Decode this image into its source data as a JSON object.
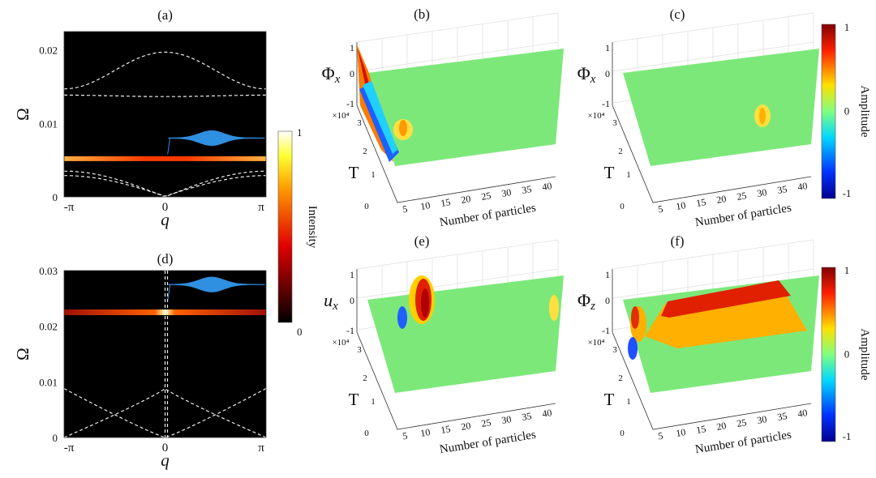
{
  "chart_data": [
    {
      "panel": "(a)",
      "type": "heatmap",
      "xlabel": "q",
      "ylabel": "Ω",
      "xticks": [
        "-π",
        "0",
        "π"
      ],
      "yticks": [
        "0",
        "0.01",
        "0.02"
      ],
      "ylim": [
        0,
        0.0225
      ],
      "xlim": [
        -3.1416,
        3.1416
      ],
      "band_omega": 0.0052,
      "packet_omega": 0.008,
      "colorbar": {
        "label": "Intensity",
        "ticks": [
          "1",
          "0"
        ]
      }
    },
    {
      "panel": "(d)",
      "type": "heatmap",
      "xlabel": "q",
      "ylabel": "Ω",
      "xticks": [
        "-π",
        "0",
        "π"
      ],
      "yticks": [
        "0",
        "0.01",
        "0.02",
        "0.03"
      ],
      "ylim": [
        0,
        0.03
      ],
      "xlim": [
        -3.1416,
        3.1416
      ],
      "band_omega": 0.0225,
      "packet_omega": 0.0275
    },
    {
      "panel": "(b)",
      "type": "surface",
      "zlabel": "Φx",
      "tlabel": "T",
      "xlabel": "Number of particles",
      "zticks": [
        "1",
        "0",
        "-1"
      ],
      "tticks": [
        "0",
        "1",
        "2",
        "3"
      ],
      "tscale": "×10⁴",
      "xticks": [
        "5",
        "10",
        "15",
        "20",
        "25",
        "30",
        "35",
        "40"
      ]
    },
    {
      "panel": "(c)",
      "type": "surface",
      "zlabel": "Φx",
      "tlabel": "T",
      "xlabel": "Number of particles",
      "zticks": [
        "1",
        "0",
        "-1"
      ],
      "tticks": [
        "0",
        "1",
        "2",
        "3"
      ],
      "tscale": "×10⁴",
      "xticks": [
        "5",
        "10",
        "15",
        "20",
        "25",
        "30",
        "35",
        "40"
      ]
    },
    {
      "panel": "(e)",
      "type": "surface",
      "zlabel": "ux",
      "tlabel": "T",
      "xlabel": "Number of particles",
      "zticks": [
        "1",
        "0",
        "-1"
      ],
      "tticks": [
        "0",
        "1",
        "2",
        "3"
      ],
      "tscale": "×10⁴",
      "xticks": [
        "5",
        "10",
        "15",
        "20",
        "25",
        "30",
        "35",
        "40"
      ]
    },
    {
      "panel": "(f)",
      "type": "surface",
      "zlabel": "Φz",
      "tlabel": "T",
      "xlabel": "Number of particles",
      "zticks": [
        "1",
        "0",
        "-1"
      ],
      "tticks": [
        "0",
        "1",
        "2",
        "3"
      ],
      "tscale": "×10⁴",
      "xticks": [
        "5",
        "10",
        "15",
        "20",
        "25",
        "30",
        "35",
        "40"
      ]
    }
  ],
  "amplitude_colorbar": {
    "label": "Amplitude",
    "ticks": [
      "1",
      "0",
      "-1"
    ]
  },
  "colors": {
    "hot_band": "#ff5a10",
    "packet": "#2f8fe0",
    "plane": "#7de87a"
  }
}
